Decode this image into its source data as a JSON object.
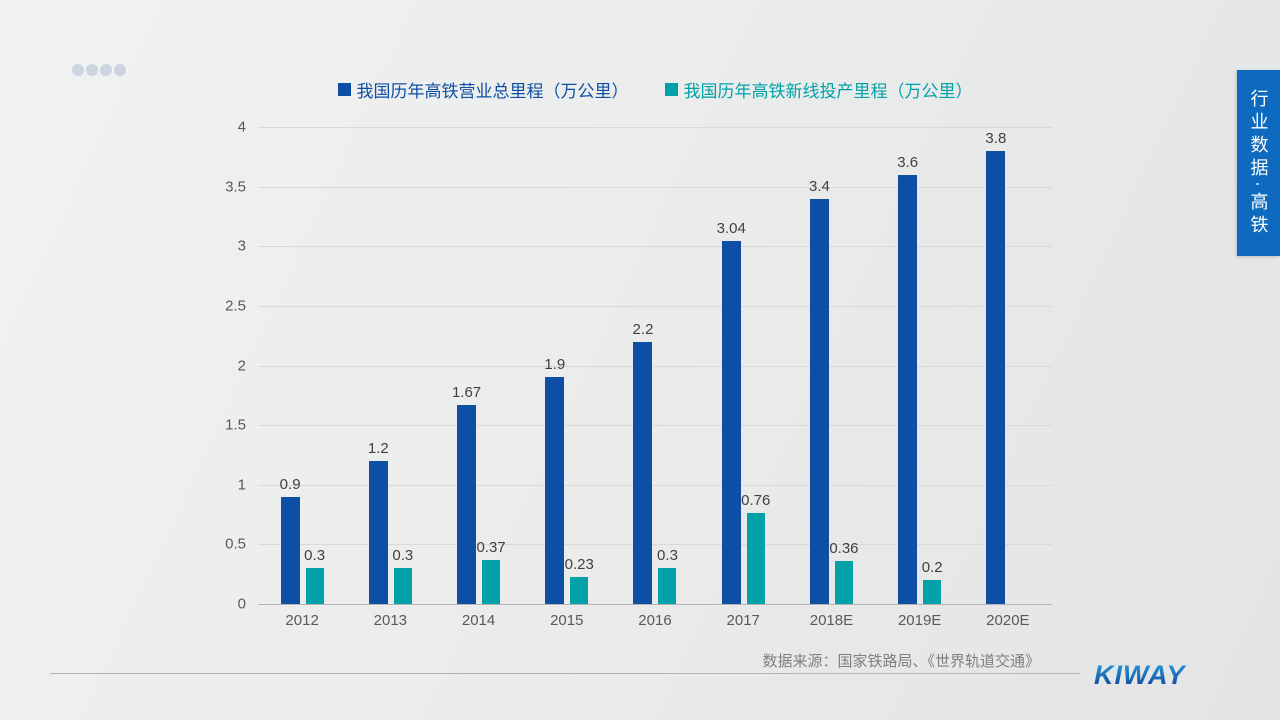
{
  "side_banner": {
    "text": "行业数据·高铁",
    "bg_color": "#0d6abf",
    "text_color": "#ffffff"
  },
  "chart_data": {
    "type": "bar",
    "title": "",
    "categories": [
      "2012",
      "2013",
      "2014",
      "2015",
      "2016",
      "2017",
      "2018E",
      "2019E",
      "2020E"
    ],
    "series": [
      {
        "name": "我国历年高铁营业总里程（万公里）",
        "color": "#0c4fa4",
        "values": [
          0.9,
          1.2,
          1.67,
          1.9,
          2.2,
          3.04,
          3.4,
          3.6,
          3.8
        ],
        "labels": [
          "0.9",
          "1.2",
          "1.67",
          "1.9",
          "2.2",
          "3.04",
          "3.4",
          "3.6",
          "3.8"
        ]
      },
      {
        "name": "我国历年高铁新线投产里程（万公里）",
        "color": "#00a2a8",
        "values": [
          0.3,
          0.3,
          0.37,
          0.23,
          0.3,
          0.76,
          0.36,
          0.2,
          null
        ],
        "labels": [
          "0.3",
          "0.3",
          "0.37",
          "0.23",
          "0.3",
          "0.76",
          "0.36",
          "0.2",
          ""
        ]
      }
    ],
    "ylim": [
      0,
      4
    ],
    "ytick_step": 0.5,
    "yticks_top_to_bottom": [
      "4",
      "3.5",
      "3",
      "2.5",
      "2",
      "1.5",
      "1",
      "0.5",
      "0"
    ],
    "grid": true,
    "legend_position": "top"
  },
  "footer": {
    "source": "数据来源：国家铁路局、《世界轨道交通》",
    "logo": "KIWAY"
  },
  "colors": {
    "grid_line": "#d9d9d9",
    "axis_line": "#b3b3b3",
    "tick_text": "#595959",
    "value_text": "#404040",
    "logo_gradient_top": "#2aa2de",
    "logo_gradient_bottom": "#0f3f98"
  }
}
